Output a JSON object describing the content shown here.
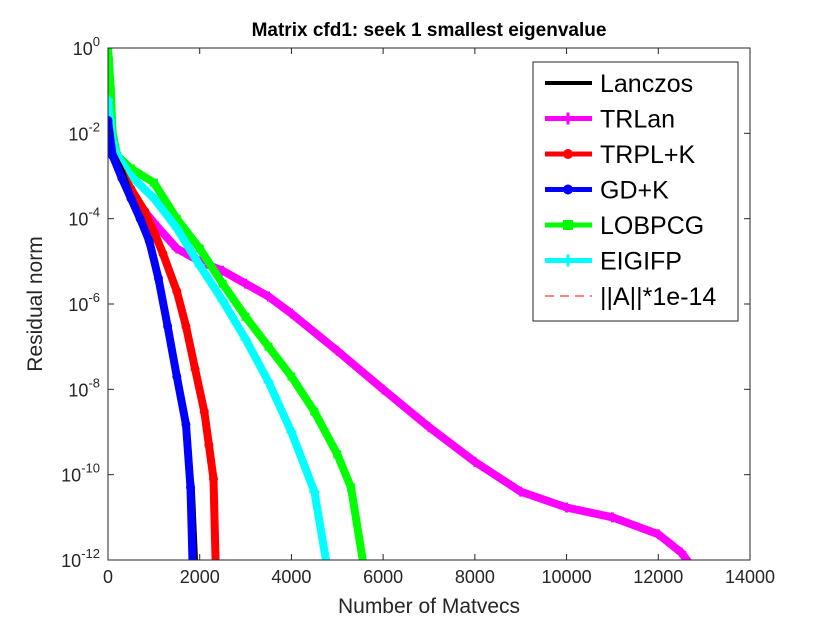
{
  "chart_data": {
    "type": "line",
    "title": "Matrix cfd1: seek 1 smallest eigenvalue",
    "xlabel": "Number of Matvecs",
    "ylabel": "Residual norm",
    "xlim": [
      0,
      14000
    ],
    "ylim": [
      1e-12,
      1
    ],
    "yscale": "log",
    "xticks": [
      "0",
      "2000",
      "4000",
      "6000",
      "8000",
      "10000",
      "12000",
      "14000"
    ],
    "yticks": [
      {
        "base": "10",
        "exp": "0",
        "value": 1
      },
      {
        "base": "10",
        "exp": "-2",
        "value": 0.01
      },
      {
        "base": "10",
        "exp": "-4",
        "value": 0.0001
      },
      {
        "base": "10",
        "exp": "-6",
        "value": 1e-06
      },
      {
        "base": "10",
        "exp": "-8",
        "value": 1e-08
      },
      {
        "base": "10",
        "exp": "-10",
        "value": 1e-10
      },
      {
        "base": "10",
        "exp": "-12",
        "value": 1e-12
      }
    ],
    "grid": false,
    "legend_position": "top-right",
    "series": [
      {
        "name": "Lanczos",
        "color": "#000000",
        "marker": "none",
        "x": [
          0,
          100,
          300,
          500,
          700,
          900,
          1100,
          1300,
          1500,
          1700,
          1850,
          1920
        ],
        "y": [
          0.02,
          0.004,
          0.0015,
          0.0004,
          0.0001,
          2e-05,
          3e-06,
          2e-07,
          1.5e-08,
          8e-10,
          5e-11,
          1e-12
        ]
      },
      {
        "name": "TRLan",
        "color": "#ff00ff",
        "marker": "star",
        "x": [
          0,
          50,
          100,
          200,
          400,
          700,
          1000,
          1500,
          2000,
          2500,
          3000,
          3500,
          4000,
          5000,
          6000,
          7000,
          8000,
          9000,
          10000,
          11000,
          12000,
          12500,
          12900
        ],
        "y": [
          0.3,
          0.03,
          0.008,
          0.002,
          0.0007,
          0.0002,
          8e-05,
          2e-05,
          1e-05,
          6e-06,
          3e-06,
          1.5e-06,
          6e-07,
          8e-08,
          1e-08,
          1.3e-09,
          2e-10,
          4e-11,
          1.7e-11,
          1e-11,
          4e-12,
          1.5e-12,
          4e-13
        ]
      },
      {
        "name": "TRPL+K",
        "color": "#ff0000",
        "marker": "circle",
        "x": [
          0,
          100,
          300,
          500,
          800,
          1000,
          1200,
          1500,
          1700,
          1900,
          2100,
          2200,
          2300,
          2350
        ],
        "y": [
          0.01,
          0.003,
          0.0012,
          0.0005,
          0.00015,
          5e-05,
          1.5e-05,
          2e-06,
          3e-07,
          3e-08,
          3e-09,
          5e-10,
          8e-11,
          6e-13
        ]
      },
      {
        "name": "GD+K",
        "color": "#0000ff",
        "marker": "circle",
        "x": [
          0,
          100,
          300,
          500,
          700,
          900,
          1100,
          1300,
          1500,
          1700,
          1800,
          1850
        ],
        "y": [
          0.02,
          0.003,
          0.0009,
          0.0003,
          0.0001,
          3e-05,
          4e-06,
          3e-07,
          2e-08,
          1.5e-09,
          5e-11,
          5e-13
        ]
      },
      {
        "name": "LOBPCG",
        "color": "#00ff00",
        "marker": "square",
        "x": [
          0,
          20,
          60,
          100,
          200,
          500,
          1000,
          1500,
          2000,
          2500,
          3000,
          3500,
          4000,
          4500,
          5000,
          5300,
          5600
        ],
        "y": [
          1,
          0.5,
          0.1,
          0.01,
          0.003,
          0.0015,
          0.0007,
          0.0001,
          2e-05,
          3e-06,
          5e-07,
          1e-07,
          2e-08,
          3e-09,
          3e-10,
          5e-11,
          5e-13
        ]
      },
      {
        "name": "EIGIFP",
        "color": "#00ffff",
        "marker": "star",
        "x": [
          0,
          50,
          100,
          200,
          500,
          1000,
          1500,
          2000,
          2500,
          3000,
          3500,
          4000,
          4500,
          4800
        ],
        "y": [
          0.06,
          0.02,
          0.006,
          0.003,
          0.001,
          0.0003,
          6e-05,
          8e-06,
          1.2e-06,
          1.5e-07,
          1.5e-08,
          1e-09,
          4e-11,
          5e-13
        ]
      },
      {
        "name": "||A||*1e-14",
        "color": "#ff0000",
        "marker": "none",
        "dashed": true,
        "x": [
          0,
          14000
        ],
        "y": [
          5e-13,
          5e-13
        ]
      }
    ]
  }
}
